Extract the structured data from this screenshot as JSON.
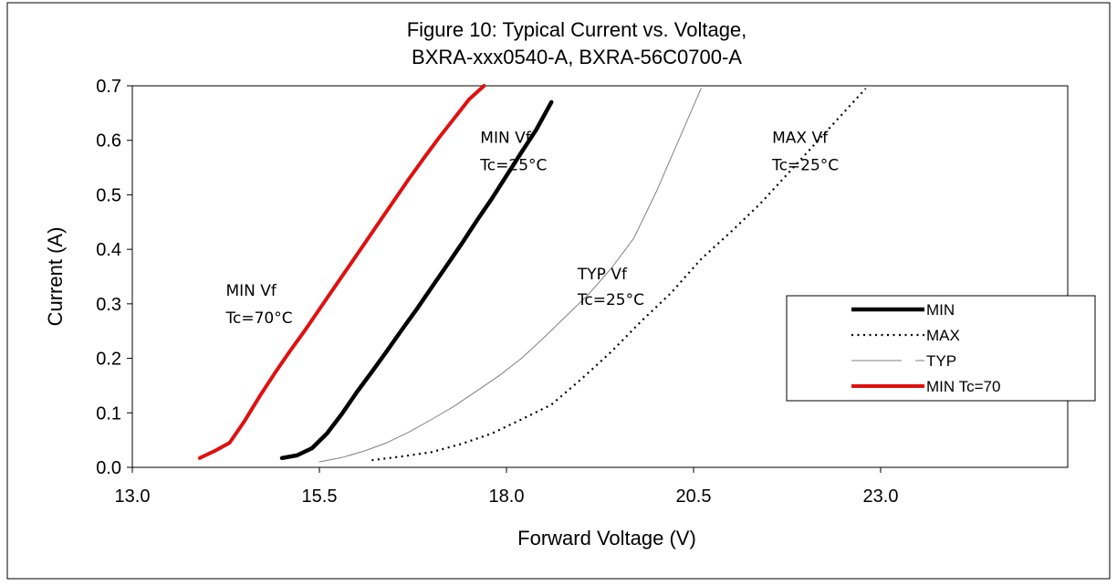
{
  "chart_data": {
    "type": "line",
    "title": "Figure 10:  Typical Current vs. Voltage,",
    "subtitle": "BXRA-xxx0540-A, BXRA-56C0700-A",
    "xlabel": "Forward Voltage (V)",
    "ylabel": "Current (A)",
    "xlim": [
      13.0,
      25.5
    ],
    "ylim": [
      0.0,
      0.7
    ],
    "x_ticks": [
      "13.0",
      "15.5",
      "18.0",
      "20.5",
      "23.0"
    ],
    "y_ticks": [
      "0.0",
      "0.1",
      "0.2",
      "0.3",
      "0.4",
      "0.5",
      "0.6",
      "0.7"
    ],
    "grid": false,
    "legend_position": "right",
    "series": [
      {
        "name": "MIN",
        "color": "#000000",
        "style": "solid-thick",
        "x": [
          15.0,
          15.2,
          15.4,
          15.6,
          15.8,
          16.0,
          16.2,
          16.4,
          16.6,
          16.8,
          17.0,
          17.2,
          17.4,
          17.6,
          17.8,
          18.0,
          18.2,
          18.4,
          18.6
        ],
        "y": [
          0.017,
          0.022,
          0.035,
          0.062,
          0.098,
          0.138,
          0.175,
          0.213,
          0.252,
          0.29,
          0.33,
          0.37,
          0.41,
          0.452,
          0.492,
          0.535,
          0.578,
          0.62,
          0.67
        ]
      },
      {
        "name": "MAX",
        "color": "#000000",
        "style": "dotted",
        "x": [
          16.2,
          16.6,
          17.0,
          17.4,
          17.8,
          18.2,
          18.6,
          19.0,
          19.4,
          19.8,
          20.2,
          20.6,
          21.0,
          21.4,
          21.8,
          22.2,
          22.6,
          22.8
        ],
        "y": [
          0.013,
          0.02,
          0.028,
          0.043,
          0.062,
          0.088,
          0.115,
          0.162,
          0.212,
          0.268,
          0.32,
          0.382,
          0.432,
          0.485,
          0.545,
          0.605,
          0.665,
          0.695
        ]
      },
      {
        "name": "TYP",
        "color": "#808080",
        "style": "thin",
        "x": [
          15.5,
          15.8,
          16.1,
          16.4,
          16.7,
          17.0,
          17.3,
          17.6,
          17.9,
          18.2,
          18.5,
          18.8,
          19.1,
          19.4,
          19.7,
          20.0,
          20.3,
          20.6
        ],
        "y": [
          0.01,
          0.018,
          0.03,
          0.045,
          0.065,
          0.088,
          0.112,
          0.14,
          0.168,
          0.2,
          0.238,
          0.278,
          0.318,
          0.365,
          0.42,
          0.505,
          0.6,
          0.695
        ]
      },
      {
        "name": "MIN Tc=70",
        "color": "#e01010",
        "style": "solid-thick",
        "x": [
          13.9,
          14.1,
          14.3,
          14.5,
          14.7,
          14.9,
          15.1,
          15.3,
          15.5,
          15.7,
          15.9,
          16.1,
          16.3,
          16.5,
          16.7,
          16.9,
          17.1,
          17.3,
          17.5,
          17.7
        ],
        "y": [
          0.017,
          0.03,
          0.045,
          0.085,
          0.13,
          0.172,
          0.212,
          0.25,
          0.29,
          0.33,
          0.37,
          0.41,
          0.45,
          0.49,
          0.53,
          0.568,
          0.605,
          0.64,
          0.675,
          0.7
        ]
      }
    ],
    "annotations": [
      {
        "lines": [
          "MIN Vf",
          "Tc=25°C"
        ],
        "x": 17.65,
        "y": [
          0.595,
          0.545
        ]
      },
      {
        "lines": [
          "MAX Vf",
          "Tc=25°C"
        ],
        "x": 21.55,
        "y": [
          0.595,
          0.545
        ]
      },
      {
        "lines": [
          "TYP Vf",
          " Tc=25°C"
        ],
        "x": 18.95,
        "y": [
          0.345,
          0.298
        ]
      },
      {
        "lines": [
          "MIN Vf",
          "Tc=70°C"
        ],
        "x": 14.25,
        "y": [
          0.315,
          0.265
        ]
      }
    ]
  }
}
